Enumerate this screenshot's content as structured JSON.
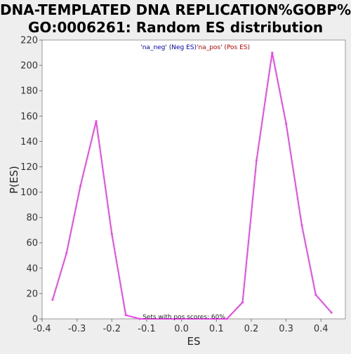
{
  "chart_data": {
    "type": "line",
    "title_lines": [
      "DNA-TEMPLATED DNA REPLICATION%GOBP%",
      "GO:0006261: Random ES distribution"
    ],
    "xlabel": "ES",
    "ylabel": "P(ES)",
    "xlim": [
      -0.4,
      0.47
    ],
    "ylim": [
      0,
      220
    ],
    "xticks": [
      -0.4,
      -0.3,
      -0.2,
      -0.1,
      0.0,
      0.1,
      0.2,
      0.3,
      0.4
    ],
    "xtick_labels": [
      "-0.4",
      "-0.3",
      "-0.2",
      "-0.1",
      "0.0",
      "0.1",
      "0.2",
      "0.3",
      "0.4"
    ],
    "yticks": [
      0,
      20,
      40,
      60,
      80,
      100,
      120,
      140,
      160,
      180,
      200,
      220
    ],
    "ytick_labels": [
      "0",
      "20",
      "40",
      "60",
      "80",
      "100",
      "120",
      "140",
      "160",
      "180",
      "200",
      "220"
    ],
    "grid": false,
    "legend": {
      "placement": "top-center",
      "entries": [
        {
          "text": "'na_neg' (Neg ES)",
          "color": "#0000cc"
        },
        {
          "text": "'na_pos' (Pos ES)",
          "color": "#cc0000"
        }
      ]
    },
    "series": [
      {
        "color": "#ee44ee",
        "x": [
          -0.37,
          -0.33,
          -0.29,
          -0.245,
          -0.2,
          -0.16,
          -0.12,
          0.13,
          0.175,
          0.215,
          0.26,
          0.3,
          0.345,
          0.385,
          0.43
        ],
        "y": [
          15,
          52,
          105,
          156,
          67,
          3,
          0,
          0,
          13,
          125,
          210,
          154,
          74,
          19,
          5
        ]
      }
    ],
    "annotation": "Sets with pos scores: 60%"
  }
}
